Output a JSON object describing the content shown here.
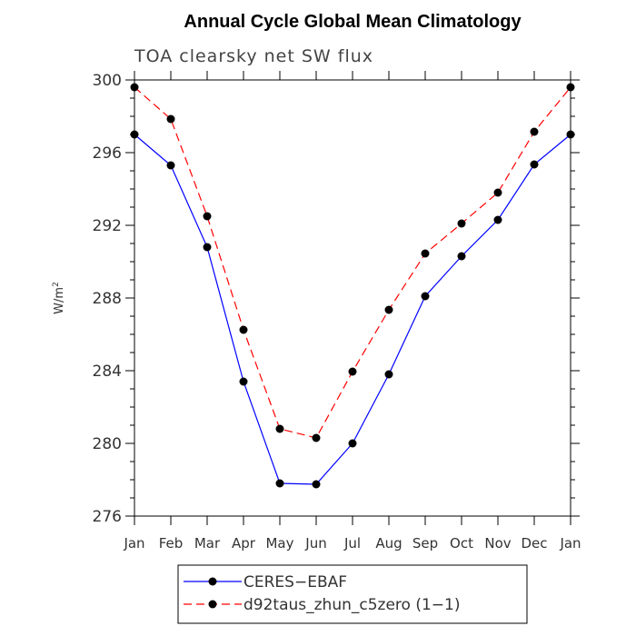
{
  "chart_data": {
    "type": "line",
    "title": "Annual Cycle Global Mean Climatology",
    "subtitle": "TOA clearsky net SW flux",
    "ylabel": "W/m",
    "ylabel_sup": "2",
    "xlabel": "",
    "categories": [
      "Jan",
      "Feb",
      "Mar",
      "Apr",
      "May",
      "Jun",
      "Jul",
      "Aug",
      "Sep",
      "Oct",
      "Nov",
      "Dec",
      "Jan"
    ],
    "ylim": [
      276,
      300
    ],
    "yticks": [
      "276",
      "280",
      "284",
      "288",
      "292",
      "296",
      "300"
    ],
    "grid": false,
    "legend_position": "bottom",
    "series": [
      {
        "name": "CERES−EBAF",
        "color": "#0000ff",
        "line_style": "solid",
        "marker": "filled-circle",
        "values": [
          297.0,
          295.3,
          290.8,
          283.4,
          277.8,
          277.75,
          280.0,
          283.8,
          288.1,
          290.3,
          292.3,
          295.35,
          297.0
        ]
      },
      {
        "name": "d92taus_zhun_c5zero (1−1)",
        "color": "#ff0000",
        "line_style": "dashed",
        "marker": "filled-circle",
        "values": [
          299.6,
          297.85,
          292.5,
          286.25,
          280.8,
          280.3,
          283.95,
          287.35,
          290.45,
          292.1,
          293.8,
          297.15,
          299.6
        ]
      }
    ]
  }
}
